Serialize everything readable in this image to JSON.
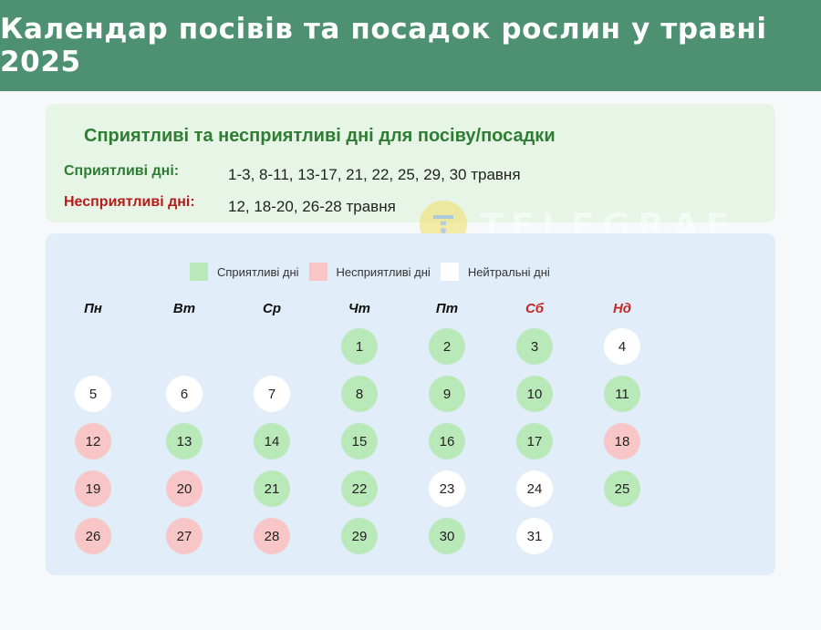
{
  "header": {
    "title": "Календар посівів та посадок рослин у травні 2025"
  },
  "info": {
    "title": "Сприятливі та несприятливі дні для посіву/посадки",
    "good_label": "Сприятливі дні:",
    "good_value": "1-3, 8-11, 13-17, 21, 22, 25, 29, 30 травня",
    "bad_label": "Несприятливі дні:",
    "bad_value": "12, 18-20, 26-28 травня"
  },
  "watermark": {
    "text": "TELEGRAF"
  },
  "legend": [
    {
      "label": "Сприятливі дні",
      "color": "#b9e8b9"
    },
    {
      "label": "Несприятливі дні",
      "color": "#f8c6c6"
    },
    {
      "label": "Нейтральні дні",
      "color": "#ffffff"
    }
  ],
  "weekdays": [
    {
      "label": "Пн",
      "weekend": false
    },
    {
      "label": "Вт",
      "weekend": false
    },
    {
      "label": "Ср",
      "weekend": false
    },
    {
      "label": "Чт",
      "weekend": false
    },
    {
      "label": "Пт",
      "weekend": false
    },
    {
      "label": "Сб",
      "weekend": true
    },
    {
      "label": "Нд",
      "weekend": true
    }
  ],
  "first_weekday_index": 3,
  "days": [
    {
      "day": 1,
      "status": "good"
    },
    {
      "day": 2,
      "status": "good"
    },
    {
      "day": 3,
      "status": "good"
    },
    {
      "day": 4,
      "status": "neutral"
    },
    {
      "day": 5,
      "status": "neutral"
    },
    {
      "day": 6,
      "status": "neutral"
    },
    {
      "day": 7,
      "status": "neutral"
    },
    {
      "day": 8,
      "status": "good"
    },
    {
      "day": 9,
      "status": "good"
    },
    {
      "day": 10,
      "status": "good"
    },
    {
      "day": 11,
      "status": "good"
    },
    {
      "day": 12,
      "status": "bad"
    },
    {
      "day": 13,
      "status": "good"
    },
    {
      "day": 14,
      "status": "good"
    },
    {
      "day": 15,
      "status": "good"
    },
    {
      "day": 16,
      "status": "good"
    },
    {
      "day": 17,
      "status": "good"
    },
    {
      "day": 18,
      "status": "bad"
    },
    {
      "day": 19,
      "status": "bad"
    },
    {
      "day": 20,
      "status": "bad"
    },
    {
      "day": 21,
      "status": "good"
    },
    {
      "day": 22,
      "status": "good"
    },
    {
      "day": 23,
      "status": "neutral"
    },
    {
      "day": 24,
      "status": "neutral"
    },
    {
      "day": 25,
      "status": "good"
    },
    {
      "day": 26,
      "status": "bad"
    },
    {
      "day": 27,
      "status": "bad"
    },
    {
      "day": 28,
      "status": "bad"
    },
    {
      "day": 29,
      "status": "good"
    },
    {
      "day": 30,
      "status": "good"
    },
    {
      "day": 31,
      "status": "neutral"
    }
  ]
}
